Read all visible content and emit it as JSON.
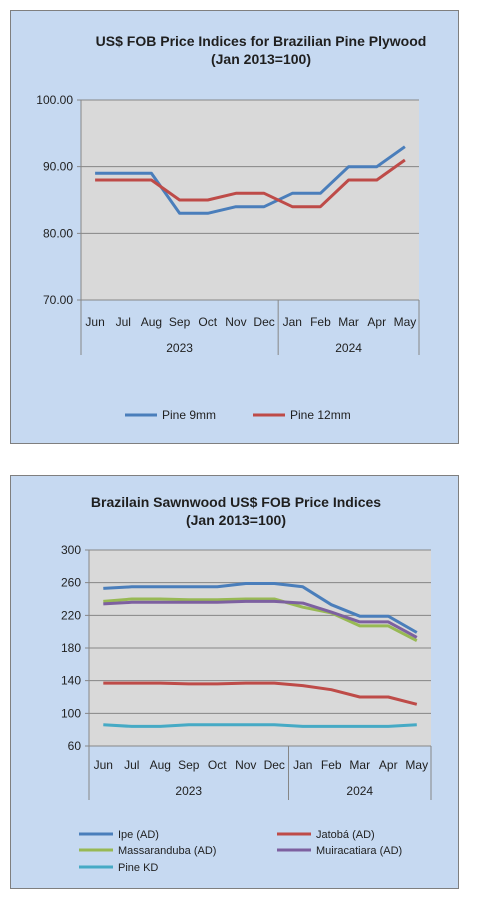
{
  "chart_data": [
    {
      "type": "line",
      "title": [
        "US$ FOB Price Indices for Brazilian  Pine Plywood",
        "(Jan 2013=100)"
      ],
      "categories": [
        "Jun",
        "Jul",
        "Aug",
        "Sep",
        "Oct",
        "Nov",
        "Dec",
        "Jan",
        "Feb",
        "Mar",
        "Apr",
        "May"
      ],
      "year_groups": [
        {
          "label": "2023",
          "count": 7
        },
        {
          "label": "2024",
          "count": 5
        }
      ],
      "ylim": [
        70,
        100
      ],
      "yticks": [
        "70.00",
        "80.00",
        "90.00",
        "100.00"
      ],
      "series": [
        {
          "name": "Pine 9mm",
          "color": "#4a7ebb",
          "values": [
            89,
            89,
            89,
            83,
            83,
            84,
            84,
            86,
            86,
            90,
            90,
            93
          ]
        },
        {
          "name": "Pine 12mm",
          "color": "#be4b48",
          "values": [
            88,
            88,
            88,
            85,
            85,
            86,
            86,
            84,
            84,
            88,
            88,
            91
          ]
        }
      ],
      "grid": true,
      "legend": "bottom"
    },
    {
      "type": "line",
      "title": [
        "Brazilain Sawnwood US$ FOB Price Indices",
        "(Jan 2013=100)"
      ],
      "categories": [
        "Jun",
        "Jul",
        "Aug",
        "Sep",
        "Oct",
        "Nov",
        "Dec",
        "Jan",
        "Feb",
        "Mar",
        "Apr",
        "May"
      ],
      "year_groups": [
        {
          "label": "2023",
          "count": 7
        },
        {
          "label": "2024",
          "count": 5
        }
      ],
      "ylim": [
        60,
        300
      ],
      "yticks": [
        "60",
        "100",
        "140",
        "180",
        "220",
        "260",
        "300"
      ],
      "series": [
        {
          "name": "Ipe (AD)",
          "color": "#4a7ebb",
          "values": [
            253,
            255,
            255,
            255,
            255,
            259,
            259,
            255,
            233,
            219,
            219,
            199
          ]
        },
        {
          "name": "Jatobá (AD)",
          "color": "#be4b48",
          "values": [
            137,
            137,
            137,
            136,
            136,
            137,
            137,
            134,
            129,
            120,
            120,
            111
          ]
        },
        {
          "name": "Massaranduba (AD)",
          "color": "#98b954",
          "values": [
            237,
            240,
            240,
            239,
            239,
            240,
            240,
            230,
            223,
            207,
            207,
            189
          ]
        },
        {
          "name": "Muiracatiara (AD)",
          "color": "#7d60a0",
          "values": [
            234,
            236,
            236,
            236,
            236,
            237,
            237,
            235,
            224,
            212,
            212,
            193
          ]
        },
        {
          "name": "Pine KD",
          "color": "#46aac5",
          "values": [
            86,
            84,
            84,
            86,
            86,
            86,
            86,
            84,
            84,
            84,
            84,
            86
          ]
        }
      ],
      "grid": true,
      "legend": "bottom"
    }
  ]
}
